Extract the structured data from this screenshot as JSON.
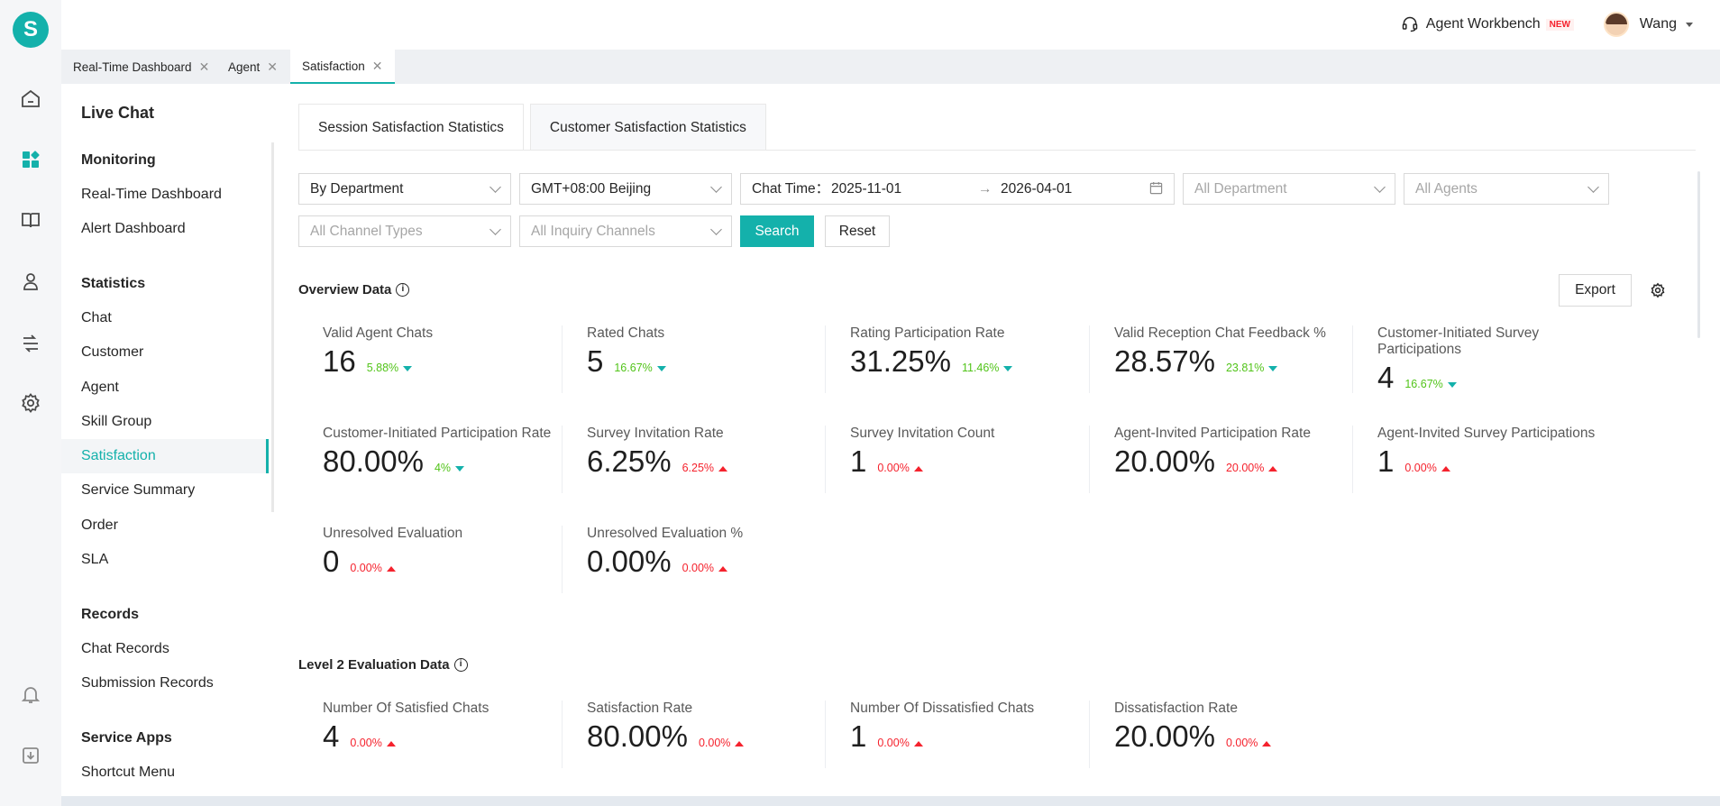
{
  "app": {
    "logo_letter": "S",
    "accent_color": "#14b1ab",
    "workbench_label": "Agent Workbench",
    "new_badge": "NEW",
    "user_name": "Wang"
  },
  "rail_icons": [
    "home-icon",
    "dashboard-icon",
    "book-icon",
    "agent-icon",
    "route-icon",
    "settings-icon",
    "bell-icon",
    "download-icon"
  ],
  "page_tabs": [
    {
      "label": "Real-Time Dashboard",
      "close": "✕"
    },
    {
      "label": "Agent",
      "close": "✕"
    },
    {
      "label": "Satisfaction",
      "close": "✕"
    }
  ],
  "sidebar": {
    "title": "Live Chat",
    "groups": [
      {
        "label": "Monitoring",
        "items": [
          "Real-Time Dashboard",
          "Alert Dashboard"
        ]
      },
      {
        "label": "Statistics",
        "items": [
          "Chat",
          "Customer",
          "Agent",
          "Skill Group",
          "Satisfaction",
          "Service Summary",
          "Order",
          "SLA"
        ]
      },
      {
        "label": "Records",
        "items": [
          "Chat Records",
          "Submission Records"
        ]
      },
      {
        "label": "Service Apps",
        "items": [
          "Shortcut Menu"
        ]
      }
    ],
    "active_item": "Satisfaction"
  },
  "sub_tabs": [
    "Session Satisfaction Statistics",
    "Customer Satisfaction Statistics"
  ],
  "filters": {
    "group_by": "By Department",
    "timezone": "GMT+08:00 Beijing",
    "chat_time_label": "Chat Time：",
    "date_start": "2025-11-01",
    "date_arrow": "→",
    "date_end": "2026-04-01",
    "department_placeholder": "All Department",
    "agents_placeholder": "All Agents",
    "channel_types_placeholder": "All Channel Types",
    "inquiry_channels_placeholder": "All Inquiry Channels",
    "search_label": "Search",
    "reset_label": "Reset"
  },
  "overview": {
    "title": "Overview Data",
    "info": "i",
    "export_label": "Export",
    "cards": [
      {
        "label": "Valid Agent Chats",
        "value": "16",
        "change": "5.88%",
        "dir": "down"
      },
      {
        "label": "Rated Chats",
        "value": "5",
        "change": "16.67%",
        "dir": "down"
      },
      {
        "label": "Rating Participation Rate",
        "value": "31.25%",
        "change": "11.46%",
        "dir": "down"
      },
      {
        "label": "Valid Reception Chat Feedback %",
        "value": "28.57%",
        "change": "23.81%",
        "dir": "down"
      },
      {
        "label": "Customer-Initiated Survey Participations",
        "value": "4",
        "change": "16.67%",
        "dir": "down"
      },
      {
        "label": "Customer-Initiated Participation Rate",
        "value": "80.00%",
        "change": "4%",
        "dir": "down"
      },
      {
        "label": "Survey Invitation Rate",
        "value": "6.25%",
        "change": "6.25%",
        "dir": "up"
      },
      {
        "label": "Survey Invitation Count",
        "value": "1",
        "change": "0.00%",
        "dir": "up"
      },
      {
        "label": "Agent-Invited Participation Rate",
        "value": "20.00%",
        "change": "20.00%",
        "dir": "up"
      },
      {
        "label": "Agent-Invited Survey Participations",
        "value": "1",
        "change": "0.00%",
        "dir": "up"
      },
      {
        "label": "Unresolved Evaluation",
        "value": "0",
        "change": "0.00%",
        "dir": "up"
      },
      {
        "label": "Unresolved Evaluation %",
        "value": "0.00%",
        "change": "0.00%",
        "dir": "up"
      }
    ]
  },
  "level2": {
    "title": "Level 2 Evaluation Data",
    "info": "i",
    "cards": [
      {
        "label": "Number Of Satisfied Chats",
        "value": "4",
        "change": "0.00%",
        "dir": "up"
      },
      {
        "label": "Satisfaction Rate",
        "value": "80.00%",
        "change": "0.00%",
        "dir": "up"
      },
      {
        "label": "Number Of Dissatisfied Chats",
        "value": "1",
        "change": "0.00%",
        "dir": "up"
      },
      {
        "label": "Dissatisfaction Rate",
        "value": "20.00%",
        "change": "0.00%",
        "dir": "up"
      }
    ]
  }
}
